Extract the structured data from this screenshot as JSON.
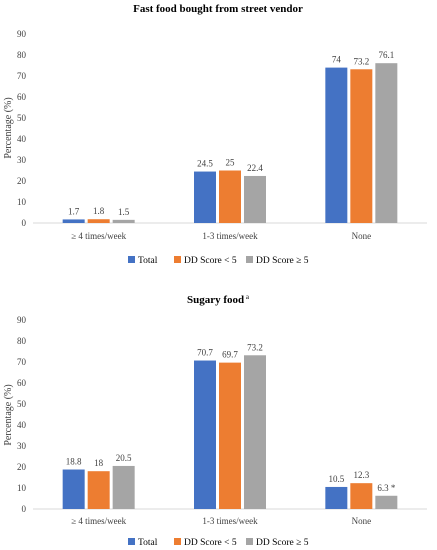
{
  "chart_data": [
    {
      "type": "bar",
      "title": "Fast food bought from street vendor",
      "title_superscript": "",
      "ylabel": "Percentage (%)",
      "xlabel": "",
      "ylim": [
        0,
        90
      ],
      "yticks": [
        0,
        10,
        20,
        30,
        40,
        50,
        60,
        70,
        80,
        90
      ],
      "categories": [
        "≥ 4 times/week",
        "1-3 times/week",
        "None"
      ],
      "series": [
        {
          "name": "Total",
          "color": "#4472C4",
          "values": [
            1.7,
            24.5,
            74
          ],
          "labels": [
            "1.7",
            "24.5",
            "74"
          ]
        },
        {
          "name": "DD Score < 5",
          "color": "#ED7D31",
          "values": [
            1.8,
            25,
            73.2
          ],
          "labels": [
            "1.8",
            "25",
            "73.2"
          ]
        },
        {
          "name": "DD Score ≥ 5",
          "color": "#A5A5A5",
          "values": [
            1.5,
            22.4,
            76.1
          ],
          "labels": [
            "1.5",
            "22.4",
            "76.1"
          ]
        }
      ],
      "legend_position": "bottom",
      "grid": false
    },
    {
      "type": "bar",
      "title": "Sugary food",
      "title_superscript": "a",
      "ylabel": "Percentage (%)",
      "xlabel": "",
      "ylim": [
        0,
        90
      ],
      "yticks": [
        0,
        10,
        20,
        30,
        40,
        50,
        60,
        70,
        80,
        90
      ],
      "categories": [
        "≥ 4 times/week",
        "1-3 times/week",
        "None"
      ],
      "series": [
        {
          "name": "Total",
          "color": "#4472C4",
          "values": [
            18.8,
            70.7,
            10.5
          ],
          "labels": [
            "18.8",
            "70.7",
            "10.5"
          ]
        },
        {
          "name": "DD Score < 5",
          "color": "#ED7D31",
          "values": [
            18,
            69.7,
            12.3
          ],
          "labels": [
            "18",
            "69.7",
            "12.3"
          ]
        },
        {
          "name": "DD Score ≥ 5",
          "color": "#A5A5A5",
          "values": [
            20.5,
            73.2,
            6.3
          ],
          "labels": [
            "20.5",
            "73.2",
            "6.3 *"
          ]
        }
      ],
      "legend_position": "bottom",
      "grid": false
    }
  ]
}
